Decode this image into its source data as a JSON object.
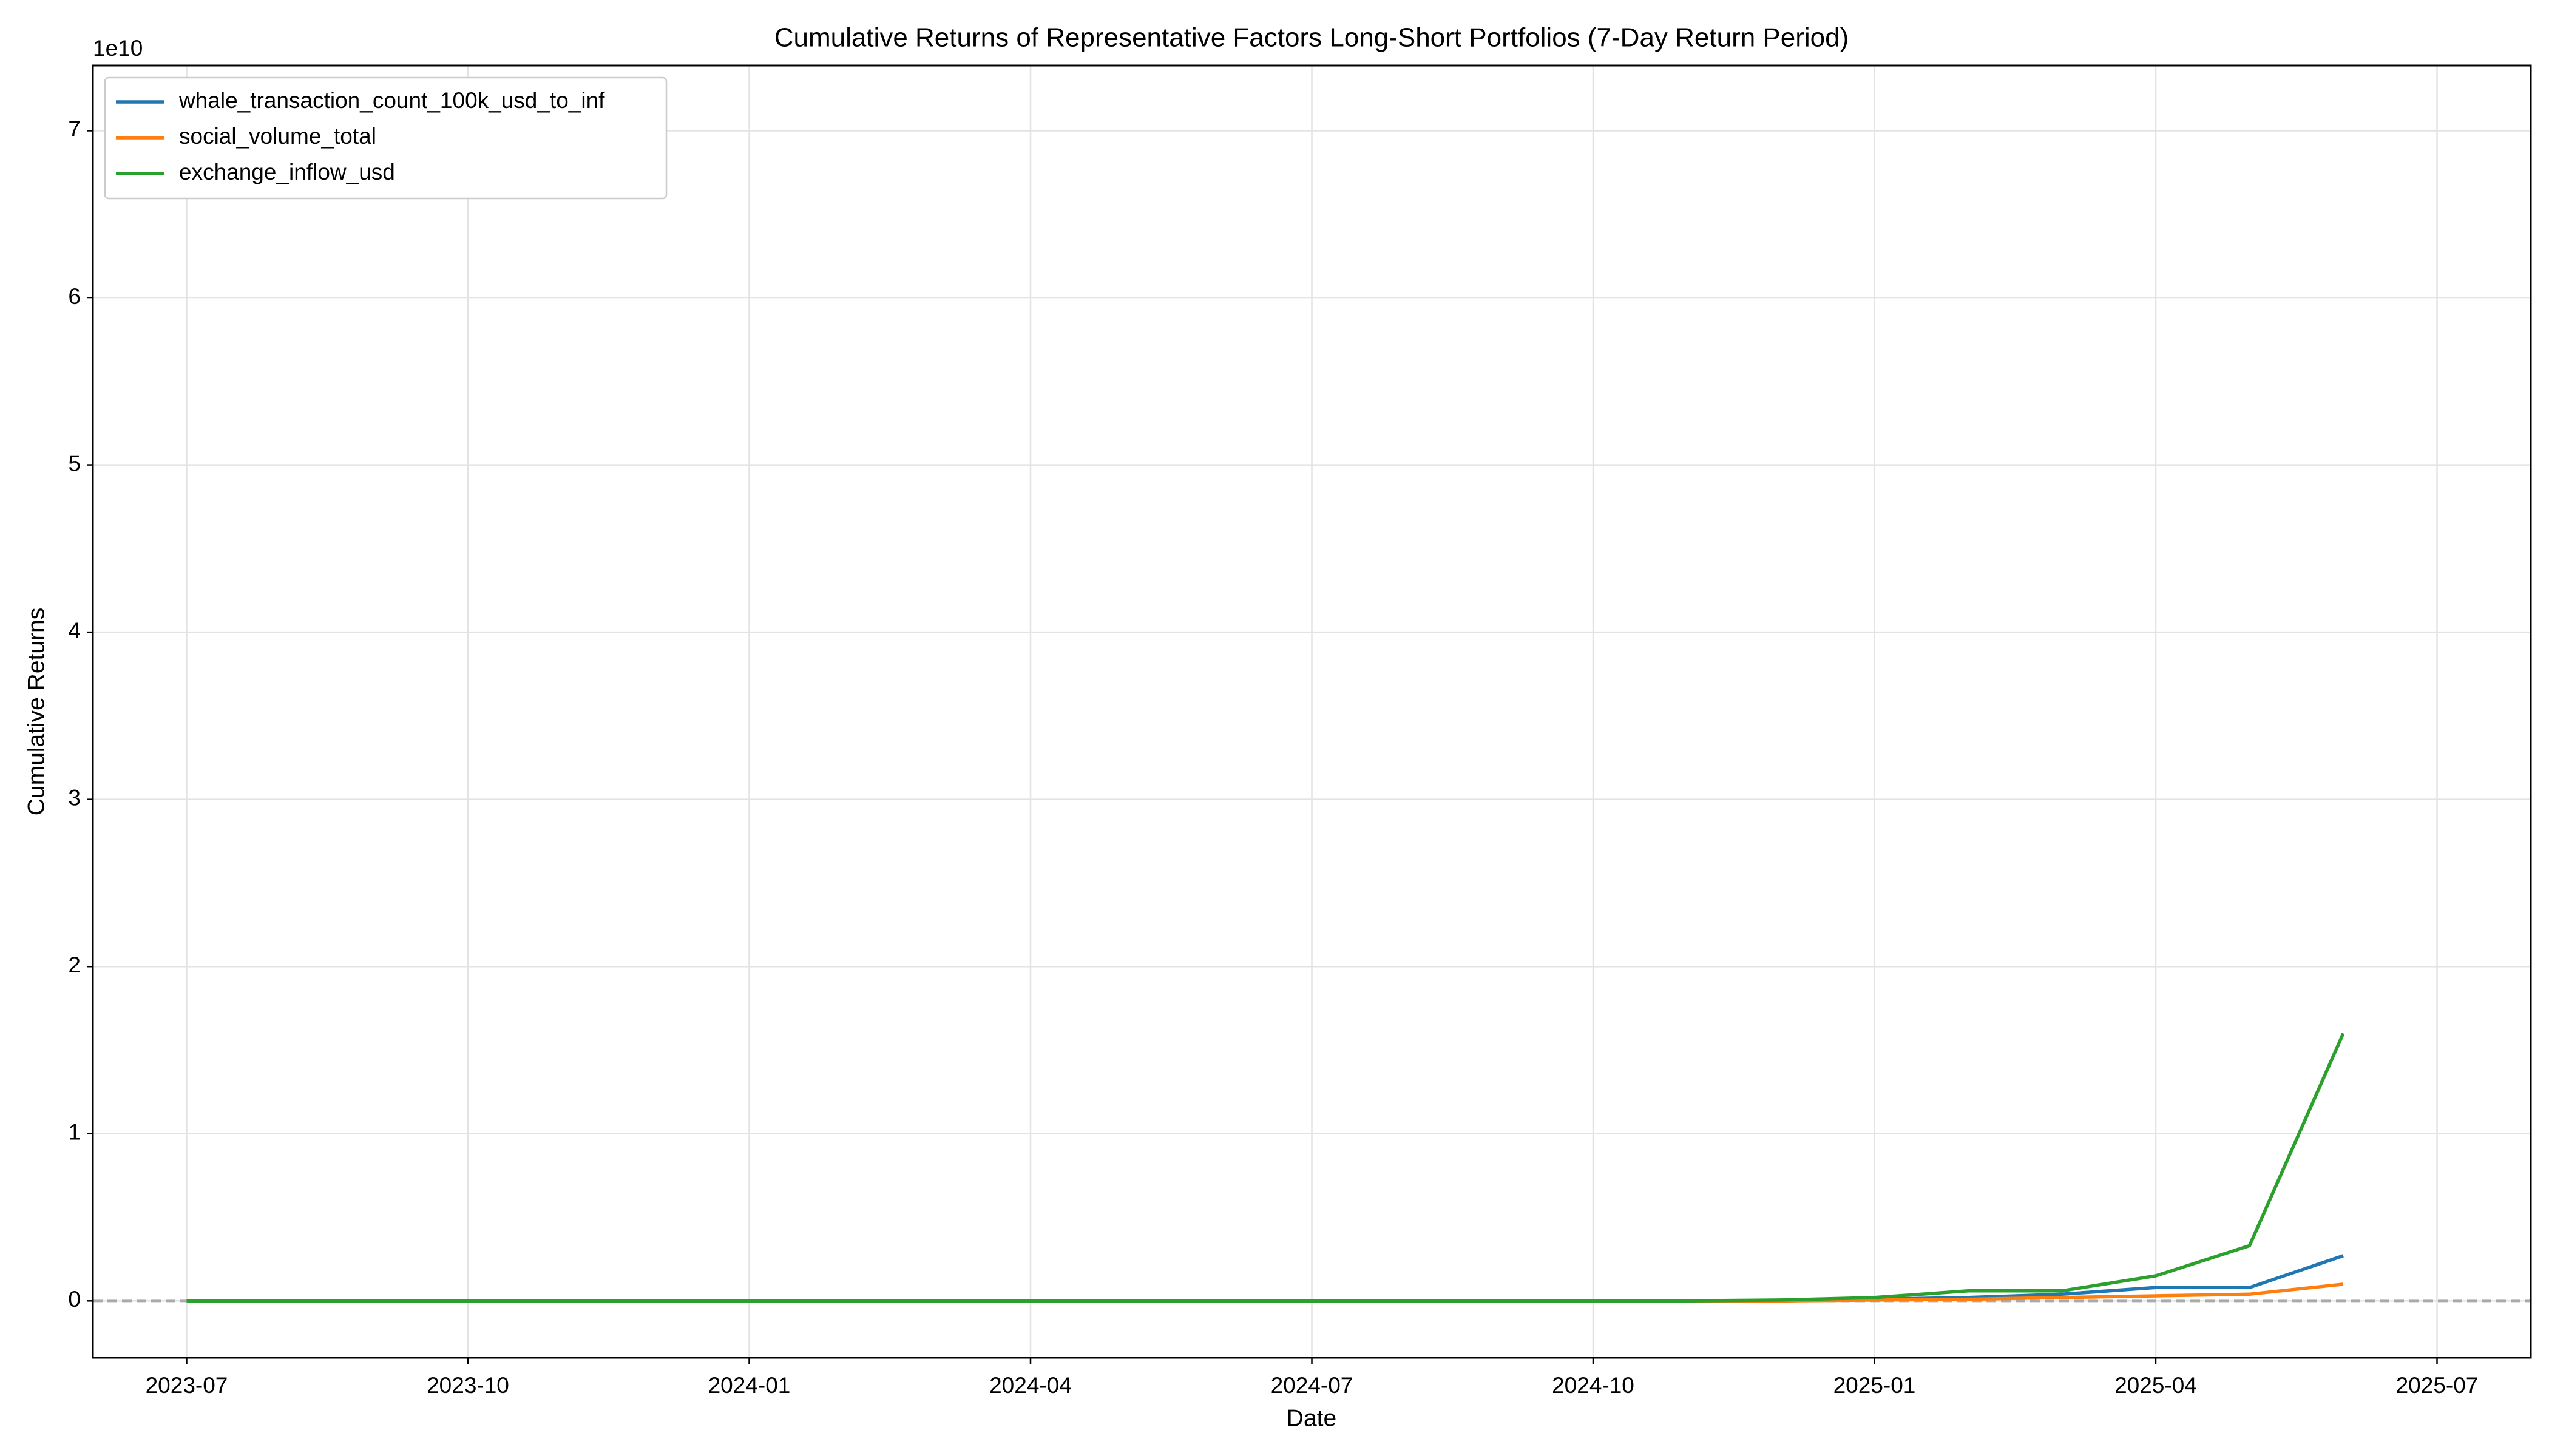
{
  "chart_data": {
    "type": "line",
    "title": "Cumulative Returns of Representative Factors Long-Short Portfolios (7-Day Return Period)",
    "x_label": "Date",
    "y_label": "Cumulative Returns",
    "y_offset_label": "1e10",
    "x": [
      "2023-07",
      "2023-08",
      "2023-09",
      "2023-10",
      "2023-11",
      "2023-12",
      "2024-01",
      "2024-02",
      "2024-03",
      "2024-04",
      "2024-05",
      "2024-06",
      "2024-07",
      "2024-08",
      "2024-09",
      "2024-10",
      "2024-11",
      "2024-12",
      "2025-01",
      "2025-02",
      "2025-03",
      "2025-04",
      "2025-05",
      "2025-06"
    ],
    "series": [
      {
        "name": "whale_transaction_count_100k_usd_to_inf",
        "color": "#1f77b4",
        "values": [
          0,
          0,
          0,
          0,
          0,
          0,
          0,
          0,
          0,
          0,
          0,
          0,
          0,
          0,
          0,
          0,
          0,
          0,
          0.01,
          0.02,
          0.04,
          0.08,
          0.08,
          0.27
        ]
      },
      {
        "name": "social_volume_total",
        "color": "#ff7f0e",
        "values": [
          0,
          0,
          0,
          0,
          0,
          0,
          0,
          0,
          0,
          0,
          0,
          0,
          0,
          0,
          0,
          0,
          0,
          0,
          0.005,
          0.01,
          0.02,
          0.03,
          0.04,
          0.1
        ]
      },
      {
        "name": "exchange_inflow_usd",
        "color": "#2ca02c",
        "values": [
          0,
          0,
          0,
          0,
          0,
          0,
          0,
          0,
          0,
          0,
          0,
          0,
          0,
          0,
          0,
          0,
          0,
          0.005,
          0.02,
          0.06,
          0.06,
          0.15,
          0.33,
          1.6
        ]
      }
    ],
    "xlim": [
      "2023-06",
      "2025-08"
    ],
    "xticks": [
      "2023-07",
      "2023-10",
      "2024-01",
      "2024-04",
      "2024-07",
      "2024-10",
      "2025-01",
      "2025-04",
      "2025-07"
    ],
    "ylim": [
      -0.34,
      7.39
    ],
    "yticks": [
      0,
      1,
      2,
      3,
      4,
      5,
      6,
      7
    ],
    "reference_line": 0,
    "grid": true,
    "legend": "upper-left"
  }
}
